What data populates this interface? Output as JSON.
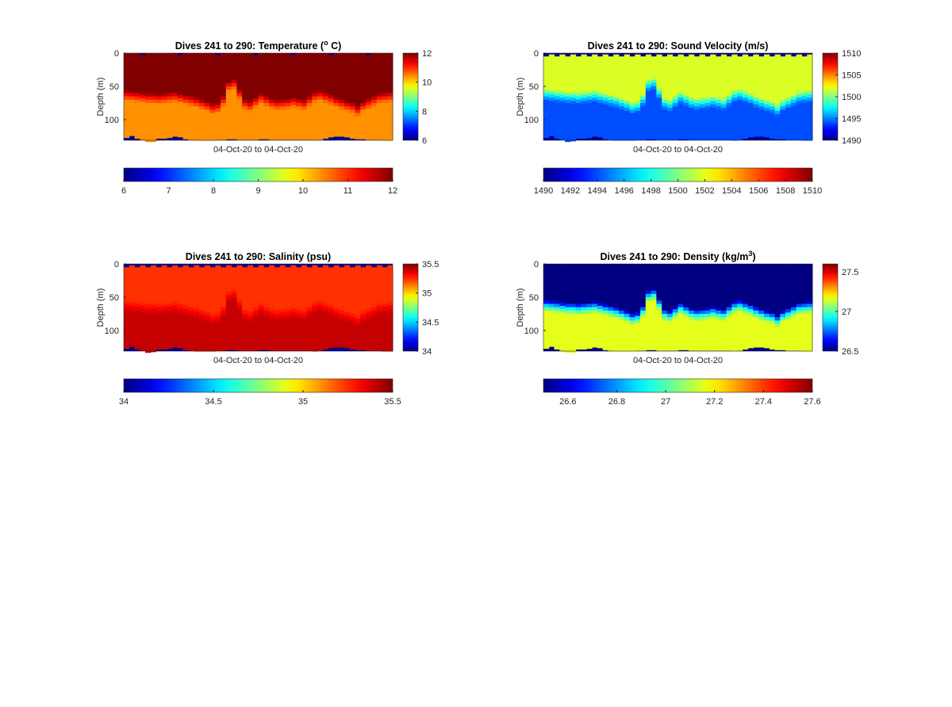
{
  "chart_data": [
    {
      "type": "heatmap",
      "title": "Dives 241 to 290: Temperature (",
      "title_sup": "o",
      "title_end": " C)",
      "xlabel": "04-Oct-20 to 04-Oct-20",
      "ylabel": "Depth (m)",
      "ylim": [
        0,
        131
      ],
      "yticks": [
        0,
        50,
        100
      ],
      "clim": [
        6,
        12
      ],
      "side_colorbar_ticks": [
        "6",
        "8",
        "10",
        "12"
      ],
      "side_colorbar_tick_values": [
        6,
        8,
        10,
        12
      ],
      "bottom_colorbar_range": [
        6,
        12
      ],
      "bottom_colorbar_ticks": [
        "6",
        "7",
        "8",
        "9",
        "10",
        "11",
        "12"
      ],
      "bottom_colorbar_tick_values": [
        6,
        7,
        8,
        9,
        10,
        11,
        12
      ],
      "upper_value": 12.3,
      "lower_value": 10.4,
      "transition_value": 11.2,
      "surface_gap": false
    },
    {
      "type": "heatmap",
      "title": "Dives 241 to 290: Sound Velocity (m/s)",
      "title_sup": "",
      "title_end": "",
      "xlabel": "04-Oct-20 to 04-Oct-20",
      "ylabel": "Depth (m)",
      "ylim": [
        0,
        131
      ],
      "yticks": [
        0,
        50,
        100
      ],
      "clim": [
        1490,
        1510
      ],
      "side_colorbar_ticks": [
        "1490",
        "1495",
        "1500",
        "1505",
        "1510"
      ],
      "side_colorbar_tick_values": [
        1490,
        1495,
        1500,
        1505,
        1510
      ],
      "bottom_colorbar_range": [
        1490,
        1510
      ],
      "bottom_colorbar_ticks": [
        "1490",
        "1492",
        "1494",
        "1496",
        "1498",
        "1500",
        "1502",
        "1504",
        "1506",
        "1508",
        "1510"
      ],
      "bottom_colorbar_tick_values": [
        1490,
        1492,
        1494,
        1496,
        1498,
        1500,
        1502,
        1504,
        1506,
        1508,
        1510
      ],
      "upper_value": 1501.8,
      "lower_value": 1494.0,
      "transition_value": 1497.0,
      "surface_gap": true
    },
    {
      "type": "heatmap",
      "title": "Dives 241 to 290: Salinity (psu)",
      "title_sup": "",
      "title_end": "",
      "xlabel": "04-Oct-20 to 04-Oct-20",
      "ylabel": "Depth (m)",
      "ylim": [
        0,
        131
      ],
      "yticks": [
        0,
        50,
        100
      ],
      "clim": [
        34,
        35.5
      ],
      "side_colorbar_ticks": [
        "34",
        "34.5",
        "35",
        "35.5"
      ],
      "side_colorbar_tick_values": [
        34,
        34.5,
        35,
        35.5
      ],
      "bottom_colorbar_range": [
        34,
        35.5
      ],
      "bottom_colorbar_ticks": [
        "34",
        "34.5",
        "35",
        "35.5"
      ],
      "bottom_colorbar_tick_values": [
        34,
        34.5,
        35,
        35.5
      ],
      "upper_value": 35.24,
      "lower_value": 35.4,
      "transition_value": 35.32,
      "surface_gap": true
    },
    {
      "type": "heatmap",
      "title": "Dives 241 to 290: Density (kg/m",
      "title_sup": "3",
      "title_end": ")",
      "xlabel": "04-Oct-20 to 04-Oct-20",
      "ylabel": "Depth (m)",
      "ylim": [
        0,
        131
      ],
      "yticks": [
        0,
        50,
        100
      ],
      "clim": [
        26.5,
        27.6
      ],
      "side_colorbar_ticks": [
        "26.5",
        "27",
        "27.5"
      ],
      "side_colorbar_tick_values": [
        26.5,
        27,
        27.5
      ],
      "bottom_colorbar_range": [
        26.5,
        27.6
      ],
      "bottom_colorbar_ticks": [
        "26.6",
        "26.8",
        "27",
        "27.2",
        "27.4",
        "27.6"
      ],
      "bottom_colorbar_tick_values": [
        26.6,
        26.8,
        27,
        27.2,
        27.4,
        27.6
      ],
      "upper_value": 26.5,
      "lower_value": 27.16,
      "transition_value": 26.9,
      "surface_gap": false
    }
  ],
  "dives": {
    "first": 241,
    "last": 290,
    "thermocline_depth_m": [
      62,
      63,
      64,
      65,
      66,
      66,
      67,
      66,
      65,
      64,
      66,
      68,
      70,
      72,
      75,
      78,
      82,
      80,
      70,
      48,
      45,
      60,
      75,
      78,
      72,
      66,
      70,
      74,
      76,
      75,
      74,
      72,
      74,
      76,
      70,
      64,
      62,
      65,
      68,
      72,
      75,
      78,
      80,
      85,
      78,
      74,
      70,
      66,
      65,
      64
    ],
    "max_depth_m": [
      127,
      124,
      128,
      130,
      133,
      133,
      128,
      128,
      127,
      125,
      126,
      129,
      130,
      131,
      131,
      131,
      131,
      130,
      130,
      129,
      129,
      130,
      130,
      130,
      130,
      129,
      129,
      130,
      130,
      130,
      130,
      130,
      130,
      130,
      130,
      131,
      130,
      128,
      126,
      125,
      125,
      126,
      128,
      129,
      129,
      130,
      130,
      130,
      131,
      131
    ]
  }
}
